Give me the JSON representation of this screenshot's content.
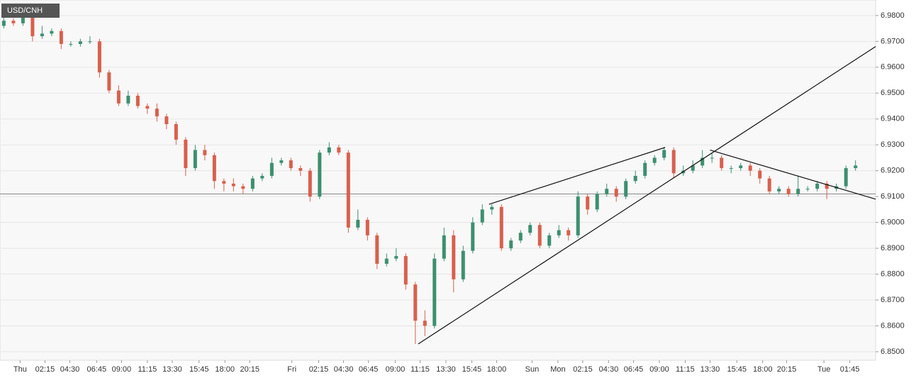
{
  "chart_data": {
    "type": "candlestick",
    "title": "USD/CNH",
    "open": [
      6.976,
      6.978,
      6.977,
      6.98,
      6.972,
      6.973,
      6.974,
      6.969,
      6.969,
      6.97,
      6.97,
      6.958,
      6.951,
      6.946,
      6.949,
      6.945,
      6.944,
      6.941,
      6.938,
      6.932,
      6.921,
      6.928,
      6.926,
      6.916,
      6.915,
      6.914,
      6.913,
      6.917,
      6.918,
      6.923,
      6.924,
      6.921,
      6.92,
      6.91,
      6.927,
      6.929,
      6.927,
      6.898,
      6.901,
      6.895,
      6.884,
      6.886,
      6.887,
      6.876,
      6.862,
      6.86,
      6.886,
      6.895,
      6.878,
      6.889,
      6.9,
      6.905,
      6.906,
      6.89,
      6.893,
      6.896,
      6.899,
      6.891,
      6.895,
      6.897,
      6.895,
      6.91,
      6.905,
      6.911,
      6.913,
      6.91,
      6.916,
      6.918,
      6.923,
      6.925,
      6.928,
      6.919,
      6.92,
      6.922,
      6.925,
      6.925,
      6.921,
      6.921,
      6.922,
      6.92,
      6.917,
      6.912,
      6.913,
      6.911,
      6.913,
      6.913,
      6.915,
      6.913,
      6.914,
      6.921
    ],
    "high": [
      6.98,
      6.979,
      6.982,
      6.981,
      6.976,
      6.975,
      6.975,
      6.97,
      6.971,
      6.972,
      6.971,
      6.959,
      6.953,
      6.951,
      6.95,
      6.946,
      6.946,
      6.942,
      6.939,
      6.933,
      6.93,
      6.93,
      6.927,
      6.917,
      6.917,
      6.915,
      6.918,
      6.919,
      6.925,
      6.925,
      6.925,
      6.922,
      6.921,
      6.928,
      6.931,
      6.93,
      6.928,
      6.905,
      6.902,
      6.896,
      6.888,
      6.89,
      6.888,
      6.877,
      6.866,
      6.888,
      6.898,
      6.897,
      6.891,
      6.902,
      6.907,
      6.907,
      6.907,
      6.894,
      6.897,
      6.9,
      6.9,
      6.896,
      6.899,
      6.898,
      6.912,
      6.911,
      6.912,
      6.915,
      6.914,
      6.917,
      6.92,
      6.924,
      6.926,
      6.929,
      6.929,
      6.922,
      6.924,
      6.928,
      6.927,
      6.926,
      6.922,
      6.923,
      6.923,
      6.921,
      6.918,
      6.914,
      6.914,
      6.918,
      6.914,
      6.916,
      6.916,
      6.915,
      6.922,
      6.924
    ],
    "low": [
      6.975,
      6.976,
      6.976,
      6.97,
      6.971,
      6.972,
      6.967,
      6.968,
      6.968,
      6.969,
      6.956,
      6.95,
      6.945,
      6.945,
      6.944,
      6.942,
      6.939,
      6.936,
      6.93,
      6.918,
      6.92,
      6.924,
      6.913,
      6.912,
      6.912,
      6.911,
      6.912,
      6.916,
      6.917,
      6.922,
      6.92,
      6.918,
      6.908,
      6.909,
      6.926,
      6.926,
      6.896,
      6.897,
      6.893,
      6.882,
      6.883,
      6.885,
      6.874,
      6.853,
      6.856,
      6.859,
      6.885,
      6.873,
      6.877,
      6.888,
      6.899,
      6.903,
      6.889,
      6.889,
      6.892,
      6.895,
      6.89,
      6.89,
      6.894,
      6.893,
      6.894,
      6.903,
      6.904,
      6.91,
      6.908,
      6.909,
      6.915,
      6.917,
      6.922,
      6.924,
      6.917,
      6.918,
      6.919,
      6.921,
      6.923,
      6.92,
      6.919,
      6.92,
      6.918,
      6.915,
      6.911,
      6.911,
      6.91,
      6.91,
      6.912,
      6.912,
      6.909,
      6.912,
      6.913,
      6.92
    ],
    "close": [
      6.978,
      6.977,
      6.98,
      6.972,
      6.973,
      6.974,
      6.969,
      6.969,
      6.97,
      6.97,
      6.958,
      6.951,
      6.946,
      6.949,
      6.945,
      6.944,
      6.941,
      6.938,
      6.932,
      6.921,
      6.928,
      6.926,
      6.916,
      6.915,
      6.914,
      6.913,
      6.917,
      6.918,
      6.923,
      6.924,
      6.921,
      6.92,
      6.91,
      6.927,
      6.929,
      6.927,
      6.898,
      6.901,
      6.895,
      6.884,
      6.886,
      6.887,
      6.876,
      6.862,
      6.86,
      6.886,
      6.895,
      6.878,
      6.889,
      6.9,
      6.905,
      6.906,
      6.89,
      6.893,
      6.896,
      6.899,
      6.891,
      6.895,
      6.897,
      6.895,
      6.91,
      6.905,
      6.911,
      6.913,
      6.91,
      6.916,
      6.918,
      6.923,
      6.925,
      6.928,
      6.919,
      6.92,
      6.922,
      6.925,
      6.925,
      6.921,
      6.921,
      6.922,
      6.92,
      6.917,
      6.912,
      6.913,
      6.911,
      6.913,
      6.913,
      6.915,
      6.913,
      6.914,
      6.921,
      6.922
    ],
    "up_color": "#3d8f6f",
    "down_color": "#d8604d",
    "xlim": [
      -0.4,
      91.1
    ],
    "ylim": [
      6.8467,
      6.986
    ],
    "xticks": [
      {
        "value": 1.7,
        "label": "Thu"
      },
      {
        "value": 4.3,
        "label": "02:15"
      },
      {
        "value": 6.9,
        "label": "04:30"
      },
      {
        "value": 9.7,
        "label": "06:45"
      },
      {
        "value": 12.3,
        "label": "09:00"
      },
      {
        "value": 15.0,
        "label": "11:15"
      },
      {
        "value": 17.6,
        "label": "13:30"
      },
      {
        "value": 20.4,
        "label": "15:45"
      },
      {
        "value": 23.1,
        "label": "18:00"
      },
      {
        "value": 25.7,
        "label": "20:15"
      },
      {
        "value": 30.1,
        "label": "Fri"
      },
      {
        "value": 32.9,
        "label": "02:15"
      },
      {
        "value": 35.5,
        "label": "04:30"
      },
      {
        "value": 38.1,
        "label": "06:45"
      },
      {
        "value": 40.9,
        "label": "09:00"
      },
      {
        "value": 43.5,
        "label": "11:15"
      },
      {
        "value": 46.2,
        "label": "13:30"
      },
      {
        "value": 48.9,
        "label": "15:45"
      },
      {
        "value": 51.5,
        "label": "18:00"
      },
      {
        "value": 55.2,
        "label": "Sun"
      },
      {
        "value": 57.9,
        "label": "Mon"
      },
      {
        "value": 60.5,
        "label": "02:15"
      },
      {
        "value": 63.2,
        "label": "04:30"
      },
      {
        "value": 65.8,
        "label": "06:45"
      },
      {
        "value": 68.5,
        "label": "09:00"
      },
      {
        "value": 71.2,
        "label": "11:15"
      },
      {
        "value": 73.8,
        "label": "13:30"
      },
      {
        "value": 76.6,
        "label": "15:45"
      },
      {
        "value": 79.3,
        "label": "18:00"
      },
      {
        "value": 81.8,
        "label": "20:15"
      },
      {
        "value": 85.7,
        "label": "Tue"
      },
      {
        "value": 88.4,
        "label": "01:45"
      }
    ],
    "yticks": [
      {
        "value": 6.85,
        "label": "6.8500"
      },
      {
        "value": 6.86,
        "label": "6.8600"
      },
      {
        "value": 6.87,
        "label": "6.8700"
      },
      {
        "value": 6.88,
        "label": "6.8800"
      },
      {
        "value": 6.89,
        "label": "6.8900"
      },
      {
        "value": 6.9,
        "label": "6.9000"
      },
      {
        "value": 6.91,
        "label": "6.9100"
      },
      {
        "value": 6.92,
        "label": "6.9200"
      },
      {
        "value": 6.93,
        "label": "6.9300"
      },
      {
        "value": 6.94,
        "label": "6.9400"
      },
      {
        "value": 6.95,
        "label": "6.9500"
      },
      {
        "value": 6.96,
        "label": "6.9600"
      },
      {
        "value": 6.97,
        "label": "6.9700"
      },
      {
        "value": 6.98,
        "label": "6.9800"
      }
    ],
    "grid": true,
    "price_line": 6.911,
    "trendlines": [
      {
        "x": [
          43.3,
          91.1
        ],
        "y": [
          6.853,
          6.968
        ]
      },
      {
        "x": [
          50.7,
          69.1
        ],
        "y": [
          6.907,
          6.929
        ]
      },
      {
        "x": [
          73.8,
          91.1
        ],
        "y": [
          6.928,
          6.909
        ]
      }
    ]
  }
}
